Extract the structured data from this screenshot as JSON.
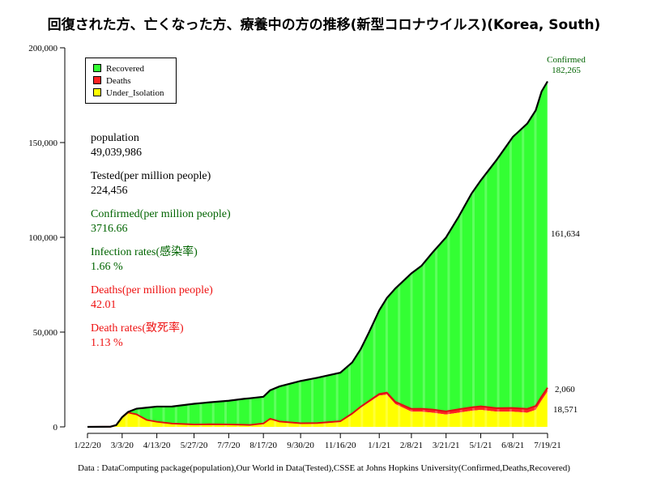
{
  "title": "回復された方、亡くなった方、療養中の方の推移(新型コロナウイルス)(Korea, South)",
  "stats": [
    {
      "label": "population",
      "value": "49,039,986",
      "color": "#000000"
    },
    {
      "label": "Tested(per million people)",
      "value": "224,456",
      "color": "#000000"
    },
    {
      "label": "Confirmed(per million people)",
      "value": "3716.66",
      "color": "#006400"
    },
    {
      "label": "Infection rates(感染率)",
      "value": "1.66 %",
      "color": "#006400"
    },
    {
      "label": "Deaths(per million people)",
      "value": "42.01",
      "color": "#ee1111"
    },
    {
      "label": "Death rates(致死率)",
      "value": "1.13 %",
      "color": "#ee1111"
    }
  ],
  "footer": "Data : DataComputing package(population),Our World in Data(Tested),CSSE at Johns Hopkins University(Confirmed,Deaths,Recovered)",
  "chart_data": {
    "type": "area",
    "stacked": true,
    "grid": false,
    "legend_position": "top-left",
    "ylim": [
      0,
      200000
    ],
    "yticks": [
      0,
      50000,
      100000,
      150000,
      200000
    ],
    "ytick_labels": [
      "0",
      "50,000",
      "100,000",
      "150,000",
      "200,000"
    ],
    "x_range": [
      "1/22/20",
      "7/19/21"
    ],
    "xticks": [
      "1/22/20",
      "3/3/20",
      "4/13/20",
      "5/27/20",
      "7/7/20",
      "8/17/20",
      "9/30/20",
      "11/16/20",
      "1/1/21",
      "2/8/21",
      "3/21/21",
      "5/1/21",
      "6/8/21",
      "7/19/21"
    ],
    "x": [
      "1/22/20",
      "2/18/20",
      "2/25/20",
      "3/3/20",
      "3/10/20",
      "3/20/20",
      "4/1/20",
      "4/13/20",
      "5/1/20",
      "5/27/20",
      "6/15/20",
      "7/7/20",
      "7/25/20",
      "8/1/20",
      "8/17/20",
      "8/25/20",
      "9/5/20",
      "9/30/20",
      "10/20/20",
      "11/16/20",
      "11/30/20",
      "12/10/20",
      "12/20/20",
      "1/1/21",
      "1/10/21",
      "1/20/21",
      "2/8/21",
      "2/20/21",
      "3/5/21",
      "3/21/21",
      "4/5/21",
      "4/20/21",
      "5/1/21",
      "5/20/21",
      "6/8/21",
      "6/25/21",
      "7/5/21",
      "7/12/21",
      "7/19/21"
    ],
    "series": [
      {
        "name": "Under_Isolation",
        "color": "#ffff00",
        "values": [
          0,
          60,
          900,
          5000,
          7500,
          6500,
          3500,
          2500,
          1500,
          1000,
          1100,
          1000,
          800,
          700,
          1500,
          4000,
          2500,
          1500,
          1600,
          2500,
          6500,
          10000,
          13000,
          16500,
          17000,
          12000,
          8000,
          8000,
          7500,
          6500,
          7500,
          8500,
          9000,
          8000,
          8000,
          7500,
          9000,
          14000,
          18571
        ]
      },
      {
        "name": "Deaths",
        "color": "#ff2222",
        "values": [
          0,
          0,
          10,
          30,
          60,
          100,
          160,
          200,
          250,
          270,
          280,
          290,
          300,
          300,
          300,
          310,
          330,
          400,
          450,
          500,
          550,
          600,
          700,
          900,
          1100,
          1250,
          1500,
          1550,
          1650,
          1700,
          1780,
          1820,
          1850,
          1900,
          1980,
          2010,
          2030,
          2040,
          2060
        ]
      },
      {
        "name": "Recovered",
        "color": "#33ff33",
        "values": [
          0,
          16,
          40,
          100,
          300,
          3000,
          6500,
          8000,
          9000,
          10900,
          11600,
          12500,
          13700,
          14100,
          14100,
          15000,
          18500,
          22300,
          23900,
          25600,
          26950,
          30400,
          36300,
          44100,
          49900,
          59750,
          71500,
          75450,
          82850,
          91800,
          101720,
          112680,
          119150,
          131100,
          143020,
          150490,
          155970,
          160960,
          161634
        ]
      }
    ],
    "confirmed": {
      "name": "Confirmed",
      "color": "#000000",
      "values": [
        1,
        76,
        950,
        5130,
        7860,
        9600,
        10160,
        10700,
        10750,
        12170,
        12980,
        13790,
        14800,
        15100,
        15900,
        19310,
        21330,
        24200,
        25950,
        28600,
        34000,
        41000,
        50000,
        61500,
        68000,
        73000,
        81000,
        85000,
        92000,
        100000,
        111000,
        123000,
        130000,
        141000,
        153000,
        160000,
        167000,
        177000,
        182265
      ]
    },
    "end_labels": {
      "confirmed_title": "Confirmed",
      "confirmed": "182,265",
      "recovered": "161,634",
      "deaths": "2,060",
      "under_isolation": "18,571"
    }
  },
  "legend": {
    "items": [
      {
        "label": "Recovered",
        "color": "#33ff33"
      },
      {
        "label": "Deaths",
        "color": "#ff2222"
      },
      {
        "label": "Under_Isolation",
        "color": "#ffff00"
      }
    ]
  }
}
